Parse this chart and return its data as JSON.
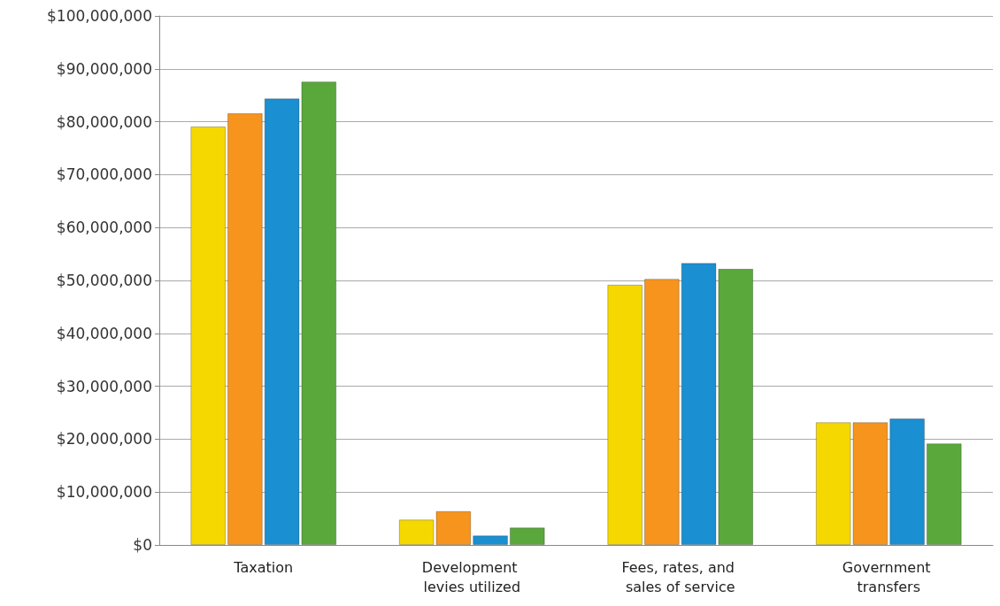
{
  "chart_data": {
    "type": "bar",
    "categories": [
      "Taxation",
      "Development levies utilized",
      "Fees, rates, and sales of service",
      "Government transfers"
    ],
    "series": [
      {
        "color": "#f5d800",
        "values": [
          79100000,
          4800000,
          49200000,
          23200000
        ]
      },
      {
        "color": "#f7941d",
        "values": [
          81600000,
          6400000,
          50300000,
          23200000
        ]
      },
      {
        "color": "#1a8fd1",
        "values": [
          84400000,
          1800000,
          53300000,
          23900000
        ]
      },
      {
        "color": "#5aa83c",
        "values": [
          87600000,
          3300000,
          52200000,
          19200000
        ]
      }
    ],
    "ylim": [
      0,
      100000000
    ],
    "yticks": [
      {
        "value": 0,
        "label": "$0"
      },
      {
        "value": 10000000,
        "label": "$10,000,000"
      },
      {
        "value": 20000000,
        "label": "$20,000,000"
      },
      {
        "value": 30000000,
        "label": "$30,000,000"
      },
      {
        "value": 40000000,
        "label": "$40,000,000"
      },
      {
        "value": 50000000,
        "label": "$50,000,000"
      },
      {
        "value": 60000000,
        "label": "$60,000,000"
      },
      {
        "value": 70000000,
        "label": "$70,000,000"
      },
      {
        "value": 80000000,
        "label": "$80,000,000"
      },
      {
        "value": 90000000,
        "label": "$90,000,000"
      },
      {
        "value": 100000000,
        "label": "$100,000,000"
      }
    ],
    "grid": true
  }
}
